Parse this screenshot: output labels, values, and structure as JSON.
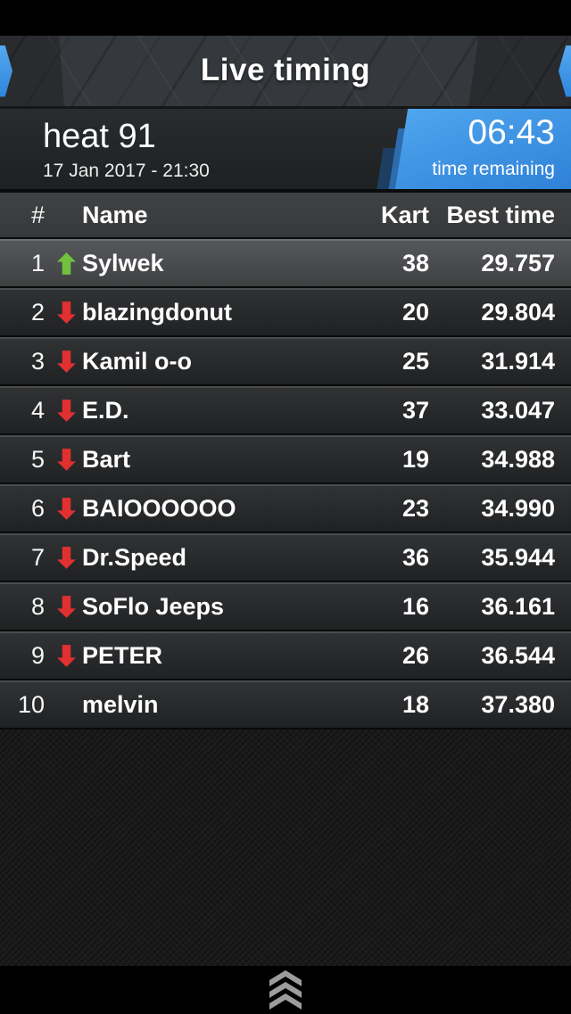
{
  "app": {
    "title": "Live timing"
  },
  "heat": {
    "title": "heat 91",
    "datetime": "17 Jan 2017 - 21:30",
    "time_remaining": "06:43",
    "time_remaining_label": "time remaining"
  },
  "table": {
    "columns": {
      "pos": "#",
      "name": "Name",
      "kart": "Kart",
      "best": "Best time"
    },
    "rows": [
      {
        "pos": "1",
        "trend": "up",
        "name": "Sylwek",
        "kart": "38",
        "best": "29.757",
        "highlight": true
      },
      {
        "pos": "2",
        "trend": "down",
        "name": "blazingdonut",
        "kart": "20",
        "best": "29.804",
        "highlight": false
      },
      {
        "pos": "3",
        "trend": "down",
        "name": "Kamil o-o",
        "kart": "25",
        "best": "31.914",
        "highlight": false
      },
      {
        "pos": "4",
        "trend": "down",
        "name": "E.D.",
        "kart": "37",
        "best": "33.047",
        "highlight": false
      },
      {
        "pos": "5",
        "trend": "down",
        "name": "Bart",
        "kart": "19",
        "best": "34.988",
        "highlight": false
      },
      {
        "pos": "6",
        "trend": "down",
        "name": "BAIOOOOOO",
        "kart": "23",
        "best": "34.990",
        "highlight": false
      },
      {
        "pos": "7",
        "trend": "down",
        "name": "Dr.Speed",
        "kart": "36",
        "best": "35.944",
        "highlight": false
      },
      {
        "pos": "8",
        "trend": "down",
        "name": "SoFlo Jeeps",
        "kart": "16",
        "best": "36.161",
        "highlight": false
      },
      {
        "pos": "9",
        "trend": "down",
        "name": "PETER",
        "kart": "26",
        "best": "36.544",
        "highlight": false
      },
      {
        "pos": "10",
        "trend": "none",
        "name": "melvin",
        "kart": "18",
        "best": "37.380",
        "highlight": false
      }
    ]
  },
  "colors": {
    "accent_blue": "#2f85dc",
    "accent_blue_light": "#55a9f0",
    "time_panel_top": "#4fa6ee",
    "time_panel_bottom": "#2d7ed6",
    "trend_up_green": "#72c13e",
    "trend_down_red": "#e03030",
    "bottom_chevron_gray": "#9c9c9c"
  },
  "icons": {
    "header_left": "chevron-right-icon",
    "header_right": "chevron-left-icon",
    "bottom": "chevrons-up-icon"
  }
}
